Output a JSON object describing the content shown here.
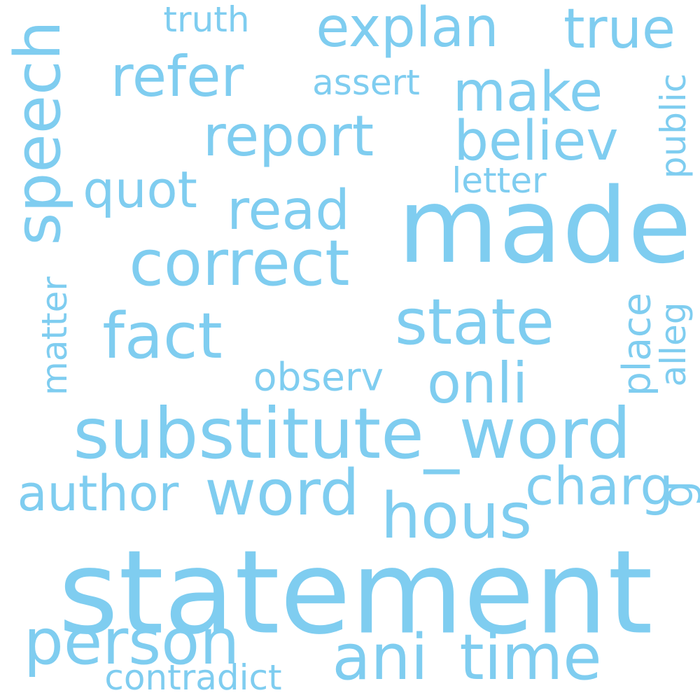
{
  "word_color": "#7fcdf0",
  "words": {
    "statement": "statement",
    "made": "made",
    "substitute_word": "substitute_word",
    "correct": "correct",
    "state": "state",
    "fact": "fact",
    "report": "report",
    "refer": "refer",
    "explan": "explan",
    "true": "true",
    "make": "make",
    "believ": "believ",
    "read": "read",
    "quot": "quot",
    "speech": "speech",
    "truth": "truth",
    "assert": "assert",
    "public": "public",
    "letter": "letter",
    "matter": "matter",
    "place": "place",
    "alleg": "alleg",
    "observ": "observ",
    "onli": "onli",
    "author": "author",
    "word": "word",
    "hous": "hous",
    "charg": "charg",
    "g": "g",
    "person": "person",
    "ani": "ani",
    "time": "time",
    "contradict": "contradict"
  }
}
